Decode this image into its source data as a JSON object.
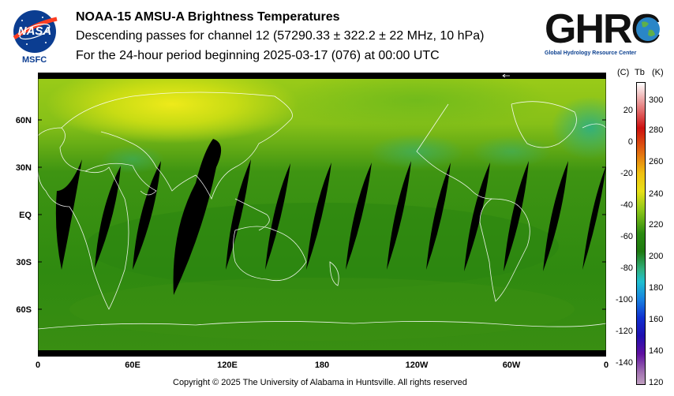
{
  "header": {
    "title": "NOAA-15 AMSU-A Brightness Temperatures",
    "line2": "Descending passes for channel 12 (57290.33 ± 322.2 ± 22 MHz, 10 hPa)",
    "line3": "For the 24-hour period beginning 2025-03-17 (076) at 00:00 UTC"
  },
  "logos": {
    "nasa_text": "NASA",
    "msfc_label": "MSFC",
    "ghrc_text": "GHRC",
    "ghrc_tagline": "Global Hydrology Resource Center"
  },
  "map": {
    "lat_labels": [
      "60N",
      "30N",
      "EQ",
      "30S",
      "60S"
    ],
    "lon_labels": [
      "0",
      "60E",
      "120E",
      "180",
      "120W",
      "60W",
      "0"
    ],
    "colors": {
      "background_green": "#2f8a10",
      "yellow_green": "#c8dc14",
      "teal": "#33b07a",
      "gap": "#000000",
      "coast": "#ffffff"
    }
  },
  "colorbar": {
    "unit_c": "(C)",
    "unit_tb": "Tb",
    "unit_k": "(K)",
    "celsius_ticks": [
      "20",
      "0",
      "-20",
      "-40",
      "-60",
      "-80",
      "-100",
      "-120",
      "-140"
    ],
    "kelvin_ticks": [
      "300",
      "280",
      "260",
      "240",
      "220",
      "200",
      "180",
      "160",
      "140",
      "120"
    ]
  },
  "footer": {
    "copyright": "Copyright © 2025 The University of Alabama in Huntsville.  All rights reserved"
  }
}
